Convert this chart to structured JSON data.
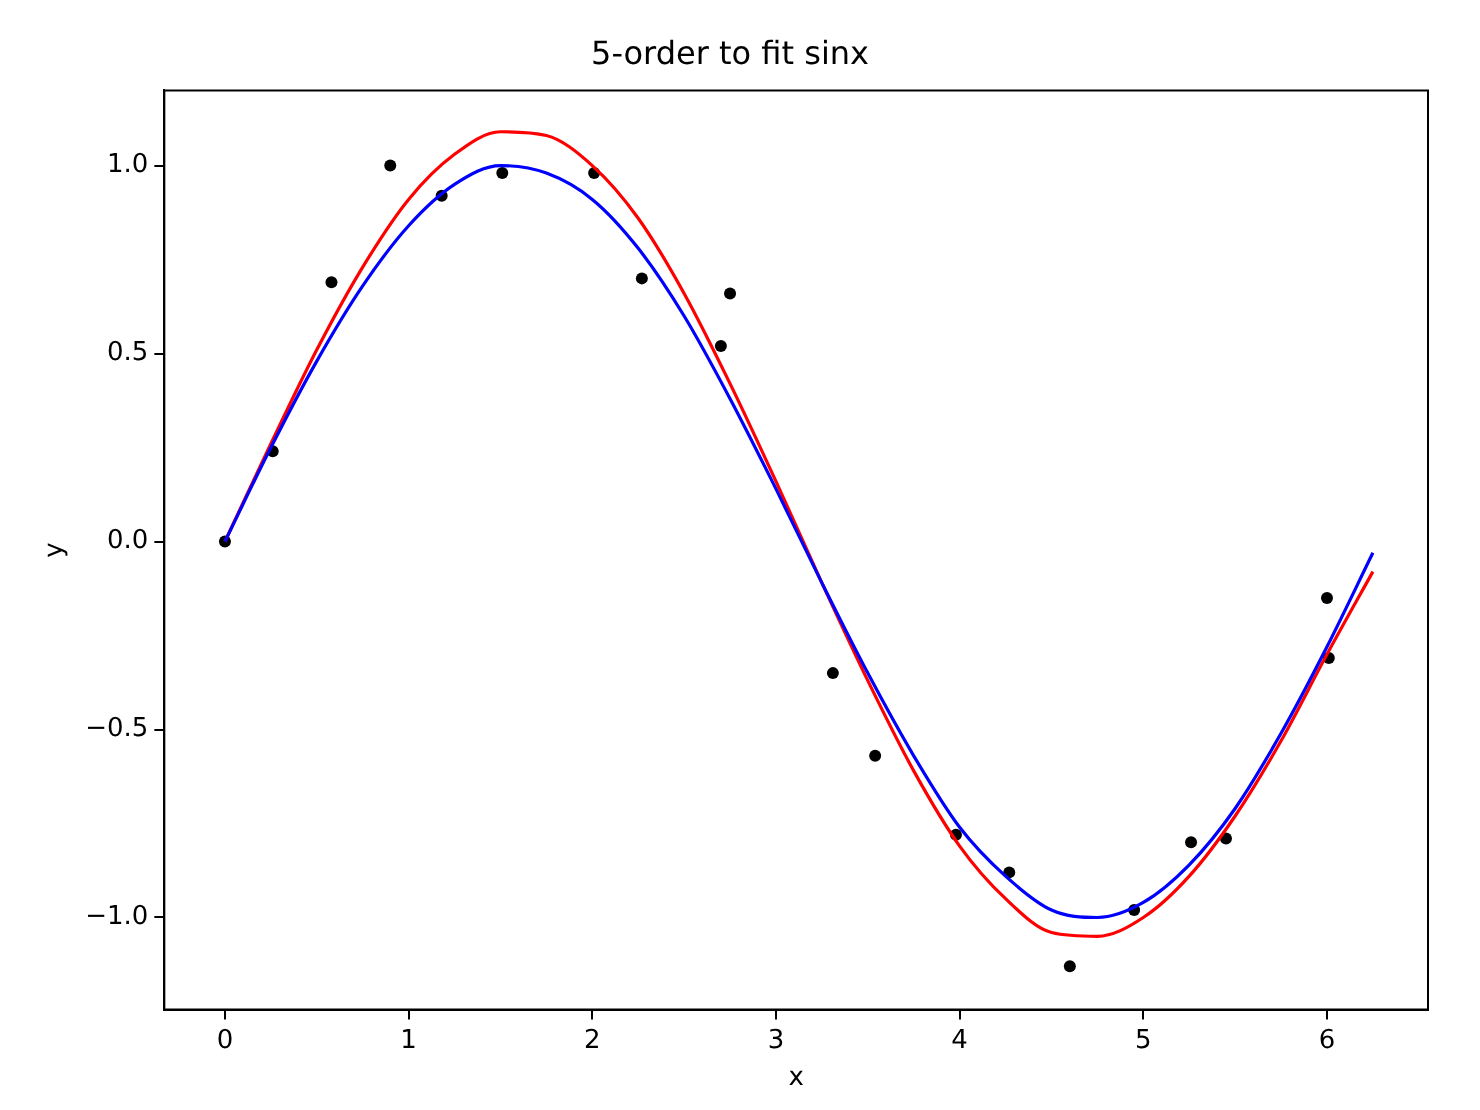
{
  "chart_data": {
    "type": "scatter",
    "title": "5-order to fit sinx",
    "xlabel": "x",
    "ylabel": "y",
    "xlim": [
      -0.33,
      6.55
    ],
    "ylim": [
      -1.245,
      1.2
    ],
    "xticks": [
      0,
      1,
      2,
      3,
      4,
      5,
      6
    ],
    "yticks": [
      {
        "value": -1.0,
        "label": "−1.0"
      },
      {
        "value": -0.5,
        "label": "−0.5"
      },
      {
        "value": 0,
        "label": "0.0"
      },
      {
        "value": 0.5,
        "label": "0.5"
      },
      {
        "value": 1.0,
        "label": "1.0"
      }
    ],
    "grid": false,
    "series": [
      {
        "type": "scatter",
        "color": "#000000",
        "marker": "circle",
        "x": [
          0,
          0.26,
          0.58,
          0.9,
          1.18,
          1.51,
          2.01,
          2.27,
          2.7,
          2.75,
          3.31,
          3.54,
          3.98,
          4.27,
          4.6,
          4.95,
          5.26,
          5.45,
          6.0,
          6.01
        ],
        "values": [
          0,
          0.24,
          0.69,
          1.0,
          0.92,
          0.98,
          0.98,
          0.7,
          0.52,
          0.66,
          -0.35,
          -0.57,
          -0.78,
          -0.88,
          -1.13,
          -0.98,
          -0.8,
          -0.79,
          -0.15,
          -0.31
        ]
      },
      {
        "type": "line",
        "color": "#ff0000",
        "marker": "none",
        "x": [
          0,
          0.25,
          0.5,
          0.75,
          1,
          1.25,
          1.5,
          1.75,
          2,
          2.25,
          2.5,
          2.75,
          3,
          3.25,
          3.5,
          3.75,
          4,
          4.25,
          4.5,
          4.75,
          5,
          5.25,
          5.5,
          5.75,
          6,
          6.25
        ],
        "values": [
          0,
          0.26,
          0.51,
          0.73,
          0.91,
          1.03,
          1.09,
          1.08,
          1.0,
          0.86,
          0.66,
          0.42,
          0.16,
          -0.11,
          -0.37,
          -0.61,
          -0.81,
          -0.95,
          -1.04,
          -1.05,
          -1.0,
          -0.89,
          -0.73,
          -0.53,
          -0.3,
          -0.08
        ]
      },
      {
        "type": "line",
        "color": "#0000ff",
        "marker": "none",
        "x": [
          0,
          0.25,
          0.5,
          0.75,
          1,
          1.25,
          1.5,
          1.75,
          2,
          2.25,
          2.5,
          2.75,
          3,
          3.25,
          3.5,
          3.75,
          4,
          4.25,
          4.5,
          4.75,
          5,
          5.25,
          5.5,
          5.75,
          6,
          6.25
        ],
        "values": [
          0,
          0.25,
          0.48,
          0.68,
          0.84,
          0.95,
          1.0,
          0.98,
          0.91,
          0.78,
          0.6,
          0.38,
          0.14,
          -0.11,
          -0.35,
          -0.57,
          -0.76,
          -0.89,
          -0.98,
          -1.0,
          -0.96,
          -0.86,
          -0.71,
          -0.51,
          -0.28,
          -0.03
        ]
      }
    ]
  }
}
